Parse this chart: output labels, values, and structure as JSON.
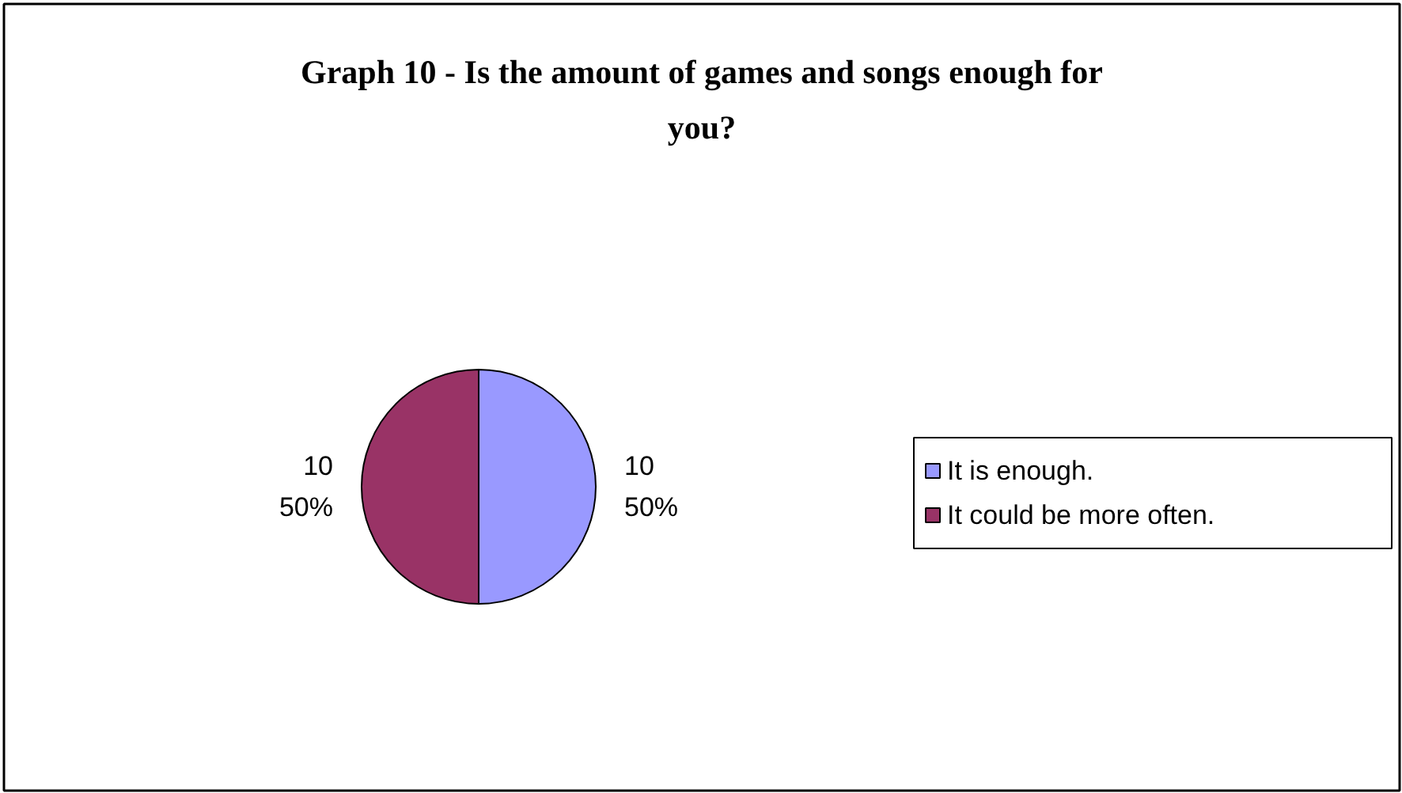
{
  "chart_data": {
    "type": "pie",
    "title": "Graph 10 - Is the amount of games and songs enough for you?",
    "categories": [
      "It is enough.",
      "It could be more often."
    ],
    "values": [
      10,
      10
    ],
    "colors": [
      "#9999ff",
      "#993366"
    ],
    "value_labels": [
      "10\n50%",
      "10\n50%"
    ],
    "legend": "right"
  }
}
